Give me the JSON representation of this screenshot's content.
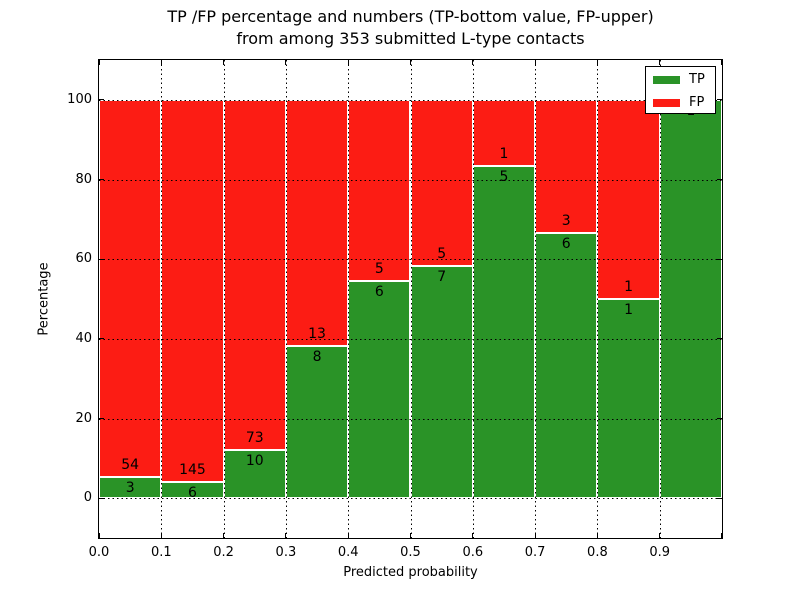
{
  "figure": {
    "title_line1": "TP /FP percentage and numbers (TP-bottom value, FP-upper)",
    "title_line2": "from among 353 submitted L-type contacts"
  },
  "chart_data": {
    "type": "bar",
    "stacked": true,
    "title": "TP /FP percentage and numbers (TP-bottom value, FP-upper) from among 353 submitted L-type contacts",
    "xlabel": "Predicted probability",
    "ylabel": "Percentage",
    "xlim": [
      0.0,
      1.0
    ],
    "ylim": [
      -10,
      110
    ],
    "x_tick_labels": [
      "0.0",
      "0.1",
      "0.2",
      "0.3",
      "0.4",
      "0.5",
      "0.6",
      "0.7",
      "0.8",
      "0.9"
    ],
    "y_tick_values": [
      0,
      20,
      40,
      60,
      80,
      100
    ],
    "grid": {
      "style": "dotted",
      "color": "#000000",
      "above_bars": true
    },
    "total_contacts": 353,
    "bin_width": 0.1,
    "categories": [
      "0.0-0.1",
      "0.1-0.2",
      "0.2-0.3",
      "0.3-0.4",
      "0.4-0.5",
      "0.5-0.6",
      "0.6-0.7",
      "0.7-0.8",
      "0.8-0.9",
      "0.9-1.0"
    ],
    "series": [
      {
        "name": "TP",
        "color": "#2a9327",
        "counts": [
          3,
          6,
          10,
          8,
          6,
          7,
          5,
          6,
          1,
          1
        ],
        "pct": [
          5.26,
          3.97,
          12.05,
          38.1,
          54.55,
          58.33,
          83.33,
          66.67,
          50.0,
          100.0
        ]
      },
      {
        "name": "FP",
        "color": "#fc1c14",
        "counts": [
          54,
          145,
          73,
          13,
          5,
          5,
          1,
          3,
          1,
          0
        ],
        "pct": [
          94.74,
          96.03,
          87.95,
          61.9,
          45.45,
          41.67,
          16.67,
          33.33,
          50.0,
          0.0
        ]
      }
    ],
    "legend": {
      "position": "upper right",
      "entries": [
        {
          "label": "TP",
          "color": "#2a9327"
        },
        {
          "label": "FP",
          "color": "#fc1c14"
        }
      ]
    }
  }
}
